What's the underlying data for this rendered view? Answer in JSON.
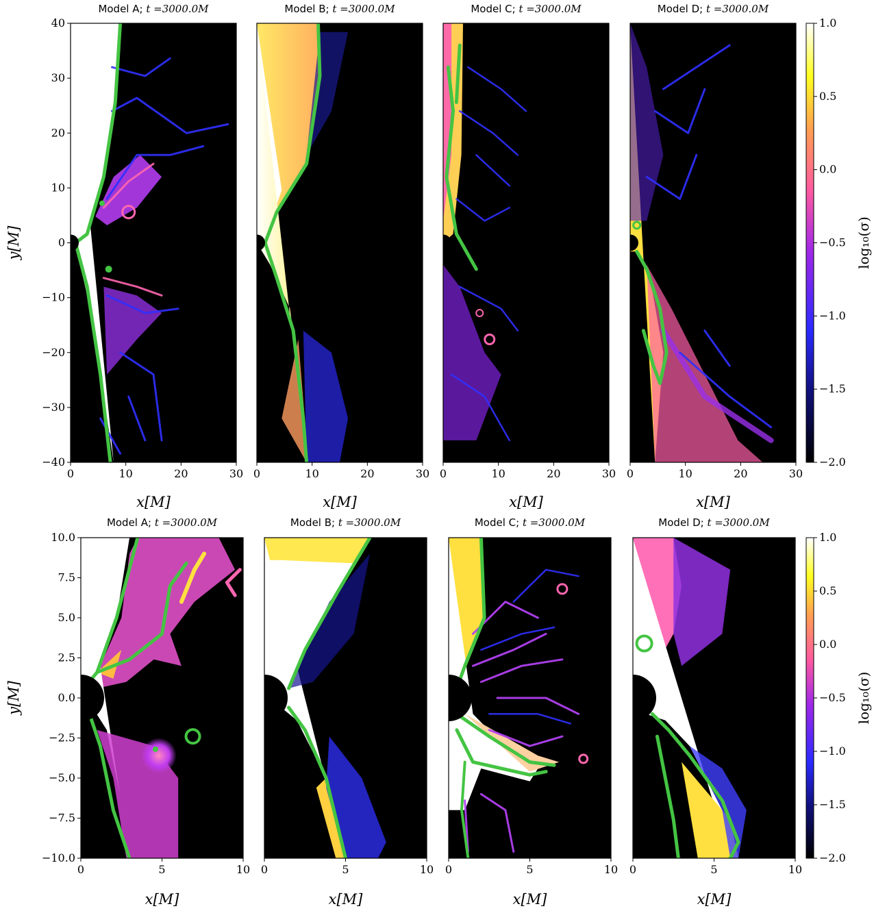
{
  "chart_data": {
    "type": "heatmap",
    "field": "log10(sigma)",
    "colormap": "gnuplot2",
    "contour_color": "#44c443",
    "colorbar": {
      "label": "log₁₀(σ)",
      "ticks": [
        "1.0",
        "0.5",
        "0.0",
        "−0.5",
        "−1.0",
        "−1.5",
        "−2.0"
      ],
      "tick_values": [
        1.0,
        0.5,
        0.0,
        -0.5,
        -1.0,
        -1.5,
        -2.0
      ],
      "range": [
        -2.0,
        1.0
      ]
    },
    "rows": [
      {
        "name": "wide",
        "xlabel": "x[M]",
        "ylabel": "y[M]",
        "xlim": [
          0,
          30
        ],
        "ylim": [
          -40,
          40
        ],
        "xticks": [
          "0",
          "10",
          "20",
          "30"
        ],
        "xtick_values": [
          0,
          10,
          20,
          30
        ],
        "yticks": [
          "40",
          "30",
          "20",
          "10",
          "0",
          "−10",
          "−20",
          "−30",
          "−40"
        ],
        "ytick_values": [
          40,
          30,
          20,
          10,
          0,
          -10,
          -20,
          -30,
          -40
        ],
        "panels": [
          {
            "model": "Model A",
            "title_text": "Model A; ",
            "time": "t =3000.0M"
          },
          {
            "model": "Model B",
            "title_text": "Model B; ",
            "time": "t =3000.0M"
          },
          {
            "model": "Model C",
            "title_text": "Model C; ",
            "time": "t =3000.0M"
          },
          {
            "model": "Model D",
            "title_text": "Model D; ",
            "time": "t =3000.0M"
          }
        ]
      },
      {
        "name": "zoom",
        "xlabel": "x[M]",
        "ylabel": "y[M]",
        "xlim": [
          0,
          10
        ],
        "ylim": [
          -10,
          10
        ],
        "xticks": [
          "0",
          "5",
          "10"
        ],
        "xtick_values": [
          0,
          5,
          10
        ],
        "yticks": [
          "10.0",
          "7.5",
          "5.0",
          "2.5",
          "0.0",
          "−2.5",
          "−5.0",
          "−7.5",
          "−10.0"
        ],
        "ytick_values": [
          10,
          7.5,
          5,
          2.5,
          0,
          -2.5,
          -5,
          -7.5,
          -10
        ],
        "panels": [
          {
            "model": "Model A",
            "title_text": "Model A; ",
            "time": "t =3000.0M"
          },
          {
            "model": "Model B",
            "title_text": "Model B; ",
            "time": "t =3000.0M"
          },
          {
            "model": "Model C",
            "title_text": "Model C; ",
            "time": "t =3000.0M"
          },
          {
            "model": "Model D",
            "title_text": "Model D; ",
            "time": "t =3000.0M"
          }
        ]
      }
    ]
  }
}
